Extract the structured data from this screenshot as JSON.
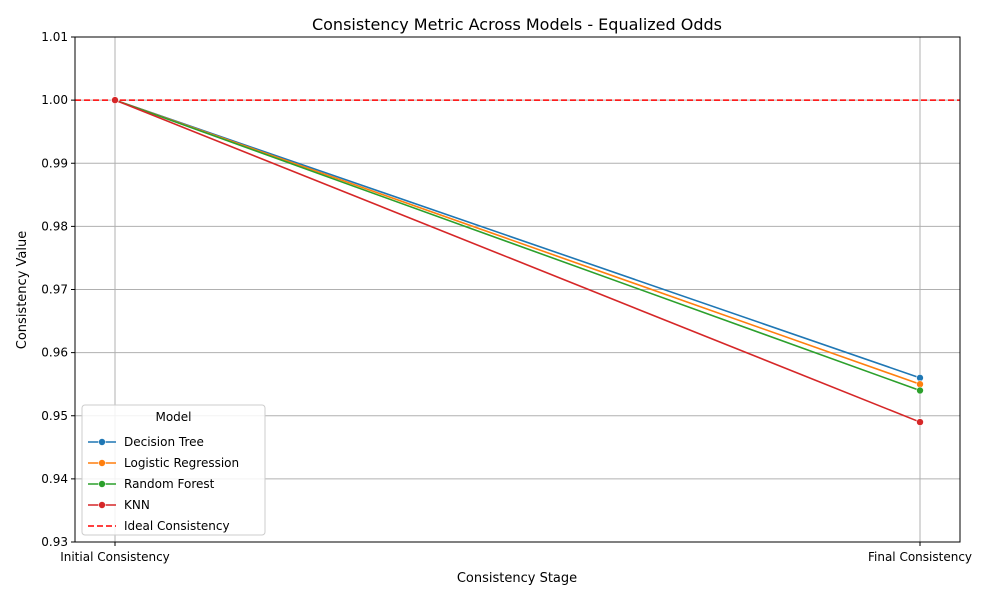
{
  "chart_data": {
    "type": "line",
    "title": "Consistency Metric Across Models - Equalized Odds",
    "xlabel": "Consistency Stage",
    "ylabel": "Consistency Value",
    "categories": [
      "Initial Consistency",
      "Final Consistency"
    ],
    "ylim": [
      0.93,
      1.01
    ],
    "yticks": [
      "0.93",
      "0.94",
      "0.95",
      "0.96",
      "0.97",
      "0.98",
      "0.99",
      "1.00",
      "1.01"
    ],
    "grid": true,
    "series": [
      {
        "name": "Decision Tree",
        "values": [
          1.0,
          0.956
        ],
        "color": "#1f77b4",
        "marker": "circle"
      },
      {
        "name": "Logistic Regression",
        "values": [
          1.0,
          0.955
        ],
        "color": "#ff7f0e",
        "marker": "circle"
      },
      {
        "name": "Random Forest",
        "values": [
          1.0,
          0.954
        ],
        "color": "#2ca02c",
        "marker": "circle"
      },
      {
        "name": "KNN",
        "values": [
          1.0,
          0.949
        ],
        "color": "#d62728",
        "marker": "circle"
      }
    ],
    "reference_line": {
      "name": "Ideal Consistency",
      "value": 1.0,
      "color": "#ff0000",
      "style": "dashed"
    },
    "legend": {
      "title": "Model",
      "placement": "lower-left"
    }
  }
}
